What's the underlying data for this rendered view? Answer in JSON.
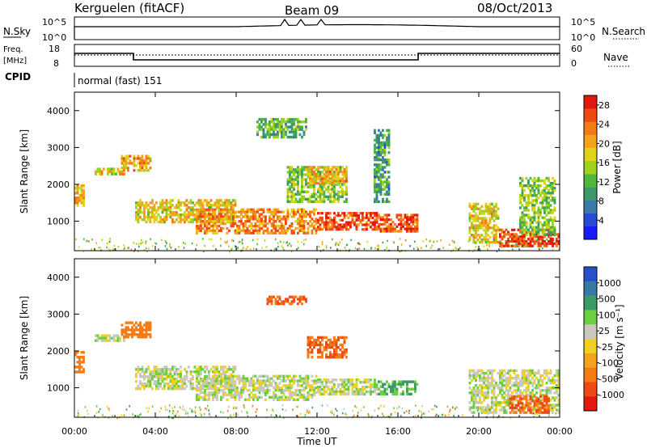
{
  "header": {
    "station": "Kerguelen (fitACF)",
    "beam": "Beam 09",
    "date": "08/Oct/2013"
  },
  "panels": {
    "nsky_label": "N.Sky",
    "nsky_ticks": [
      "10^5",
      "10^0"
    ],
    "nsearch_label": "N.Search",
    "freq_label_line1": "Freq.",
    "freq_label_line2": "[MHz]",
    "freq_ticks": [
      "18",
      "8"
    ],
    "nave_label": "Nave",
    "nave_ticks": [
      "60",
      "0"
    ],
    "cpid_label": "CPID",
    "cpid_text": "normal (fast) 151"
  },
  "chart_data": [
    {
      "type": "heatmap",
      "title": "",
      "ylabel": "Slant Range [km]",
      "xlabel": "",
      "ylim": [
        200,
        4500
      ],
      "yticks": [
        1000,
        2000,
        3000,
        4000
      ],
      "colorbar_label": "Power [dB]",
      "colorbar_ticks": [
        "4",
        "8",
        "12",
        "16",
        "20",
        "24",
        "28"
      ],
      "colorbar_colors": [
        "#1a1aff",
        "#2a4ad8",
        "#3a7aa8",
        "#3c9a6a",
        "#4fb83c",
        "#9ed21f",
        "#e0d218",
        "#f3a31c",
        "#f57b16",
        "#ee4a14",
        "#e2190f"
      ],
      "colorbar_range": [
        0,
        30
      ],
      "echo_regions": [
        {
          "t": [
            0.0,
            0.5
          ],
          "r": [
            1400,
            2000
          ],
          "level": 20
        },
        {
          "t": [
            1.0,
            2.5
          ],
          "r": [
            2250,
            2450
          ],
          "level": 18
        },
        {
          "t": [
            2.3,
            3.8
          ],
          "r": [
            2350,
            2800
          ],
          "level": 20
        },
        {
          "t": [
            3.0,
            8.0
          ],
          "r": [
            950,
            1600
          ],
          "level": 18
        },
        {
          "t": [
            6.0,
            12.0
          ],
          "r": [
            650,
            1350
          ],
          "level": 22
        },
        {
          "t": [
            9.0,
            11.5
          ],
          "r": [
            3250,
            3800
          ],
          "level": 12
        },
        {
          "t": [
            10.5,
            13.5
          ],
          "r": [
            1500,
            2500
          ],
          "level": 14
        },
        {
          "t": [
            11.5,
            13.5
          ],
          "r": [
            2000,
            2500
          ],
          "level": 20
        },
        {
          "t": [
            12.0,
            15.0
          ],
          "r": [
            750,
            1250
          ],
          "level": 26
        },
        {
          "t": [
            15.0,
            17.0
          ],
          "r": [
            700,
            1200
          ],
          "level": 26
        },
        {
          "t": [
            14.8,
            15.6
          ],
          "r": [
            1500,
            3500
          ],
          "level": 10
        },
        {
          "t": [
            19.5,
            21.0
          ],
          "r": [
            400,
            1500
          ],
          "level": 18
        },
        {
          "t": [
            21.0,
            24.0
          ],
          "r": [
            300,
            800
          ],
          "level": 26
        },
        {
          "t": [
            22.0,
            23.8
          ],
          "r": [
            600,
            2200
          ],
          "level": 14
        }
      ]
    },
    {
      "type": "heatmap",
      "title": "",
      "ylabel": "Slant Range [km]",
      "xlabel": "Time UT",
      "xlim": [
        0,
        24
      ],
      "xticks": [
        "00:00",
        "04:00",
        "08:00",
        "12:00",
        "16:00",
        "20:00",
        "00:00"
      ],
      "ylim": [
        200,
        4500
      ],
      "yticks": [
        1000,
        2000,
        3000,
        4000
      ],
      "colorbar_label": "Velocity [m s⁻¹]",
      "colorbar_ticks": [
        "1000",
        "500",
        "100",
        "25",
        "-25",
        "-100",
        "-500",
        "-1000"
      ],
      "colorbar_colors": [
        "#2850c8",
        "#3a78a8",
        "#3c9a6a",
        "#6ad040",
        "#c8c8c0",
        "#f0d020",
        "#f3a31c",
        "#f57b16",
        "#ee4a14",
        "#e2190f"
      ],
      "echo_regions": [
        {
          "t": [
            0.0,
            0.5
          ],
          "r": [
            1400,
            2000
          ],
          "velocity": -300
        },
        {
          "t": [
            1.0,
            2.5
          ],
          "r": [
            2250,
            2450
          ],
          "velocity": 0
        },
        {
          "t": [
            2.3,
            3.8
          ],
          "r": [
            2350,
            2800
          ],
          "velocity": -300
        },
        {
          "t": [
            3.0,
            8.0
          ],
          "r": [
            950,
            1600
          ],
          "velocity": 0
        },
        {
          "t": [
            6.0,
            12.0
          ],
          "r": [
            650,
            1350
          ],
          "velocity": 0
        },
        {
          "t": [
            9.5,
            11.5
          ],
          "r": [
            3250,
            3500
          ],
          "velocity": -500
        },
        {
          "t": [
            11.5,
            13.5
          ],
          "r": [
            1800,
            2400
          ],
          "velocity": -500
        },
        {
          "t": [
            12.0,
            15.0
          ],
          "r": [
            800,
            1250
          ],
          "velocity": 0
        },
        {
          "t": [
            15.0,
            17.0
          ],
          "r": [
            800,
            1200
          ],
          "velocity": 100
        },
        {
          "t": [
            19.5,
            24.0
          ],
          "r": [
            300,
            1500
          ],
          "velocity": 0
        },
        {
          "t": [
            21.5,
            23.5
          ],
          "r": [
            300,
            800
          ],
          "velocity": -500
        }
      ]
    }
  ]
}
